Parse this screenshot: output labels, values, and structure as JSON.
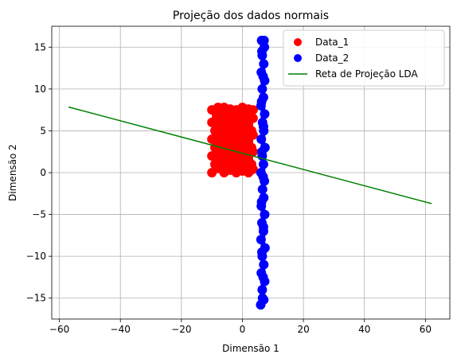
{
  "chart_data": {
    "type": "scatter",
    "title": "Projeção dos dados normais",
    "xlabel": "Dimensão 1",
    "ylabel": "Dimensão 2",
    "xlim": [
      -62.5,
      68
    ],
    "ylim": [
      -17.5,
      17.5
    ],
    "xticks": [
      -60,
      -40,
      -20,
      0,
      20,
      40,
      60
    ],
    "yticks": [
      -15,
      -10,
      -5,
      0,
      5,
      10,
      15
    ],
    "xtick_labels": [
      "−60",
      "−40",
      "−20",
      "0",
      "20",
      "40",
      "60"
    ],
    "ytick_labels": [
      "−15",
      "−10",
      "−5",
      "0",
      "5",
      "10",
      "15"
    ],
    "grid": true,
    "legend": "top-right",
    "series": [
      {
        "name": "Data_1",
        "kind": "scatter",
        "color": "#ff0000",
        "region": {
          "x": [
            -10,
            3.5
          ],
          "y": [
            0,
            7.8
          ]
        },
        "points": [
          [
            -10,
            0
          ],
          [
            -10,
            2
          ],
          [
            -10,
            4
          ],
          [
            -10,
            6
          ],
          [
            -10,
            7.5
          ],
          [
            -8,
            0.5
          ],
          [
            -8,
            2.5
          ],
          [
            -8,
            4.5
          ],
          [
            -8,
            6.5
          ],
          [
            -8,
            7.8
          ],
          [
            -6,
            0
          ],
          [
            -6,
            1.5
          ],
          [
            -6,
            3
          ],
          [
            -6,
            5
          ],
          [
            -6,
            7
          ],
          [
            -6,
            7.8
          ],
          [
            -4,
            0.3
          ],
          [
            -4,
            2
          ],
          [
            -4,
            4
          ],
          [
            -4,
            6
          ],
          [
            -4,
            7.6
          ],
          [
            -2,
            0
          ],
          [
            -2,
            1.8
          ],
          [
            -2,
            3.5
          ],
          [
            -2,
            5.5
          ],
          [
            -2,
            7.5
          ],
          [
            0,
            0.2
          ],
          [
            0,
            2.2
          ],
          [
            0,
            4.2
          ],
          [
            0,
            6.2
          ],
          [
            0,
            7.8
          ],
          [
            2,
            0
          ],
          [
            2,
            1.5
          ],
          [
            2,
            3.8
          ],
          [
            2,
            5.8
          ],
          [
            2,
            7.6
          ],
          [
            3.5,
            0.4
          ],
          [
            3.5,
            2.5
          ],
          [
            3.5,
            4.5
          ],
          [
            3.5,
            6.5
          ],
          [
            3.5,
            7.5
          ],
          [
            -9,
            1
          ],
          [
            -9,
            3
          ],
          [
            -9,
            5
          ],
          [
            -7,
            1.5
          ],
          [
            -7,
            3.5
          ],
          [
            -7,
            5.5
          ],
          [
            -5,
            1
          ],
          [
            -5,
            3
          ],
          [
            -5,
            5
          ],
          [
            -3,
            1
          ],
          [
            -3,
            3
          ],
          [
            -3,
            5
          ],
          [
            -1,
            1
          ],
          [
            -1,
            3
          ],
          [
            -1,
            5
          ],
          [
            1,
            1
          ],
          [
            1,
            3
          ],
          [
            1,
            5
          ],
          [
            3,
            1
          ],
          [
            3,
            3
          ],
          [
            3,
            5
          ]
        ]
      },
      {
        "name": "Data_2",
        "kind": "scatter",
        "color": "#0000ff",
        "region": {
          "x": [
            6,
            7.5
          ],
          "y": [
            -15.8,
            15.8
          ]
        },
        "points": [
          [
            6,
            -15.8
          ],
          [
            7,
            -15.2
          ],
          [
            6.5,
            -14
          ],
          [
            7.3,
            -13
          ],
          [
            6.2,
            -12
          ],
          [
            7,
            -11
          ],
          [
            6.5,
            -10
          ],
          [
            7.4,
            -9
          ],
          [
            6.1,
            -8
          ],
          [
            6.9,
            -7
          ],
          [
            6.4,
            -6
          ],
          [
            7.3,
            -5
          ],
          [
            6.2,
            -4
          ],
          [
            7,
            -3
          ],
          [
            6.6,
            -2
          ],
          [
            7.2,
            -1
          ],
          [
            6.1,
            0
          ],
          [
            6.9,
            1
          ],
          [
            6.5,
            2
          ],
          [
            7.4,
            3
          ],
          [
            6.2,
            4
          ],
          [
            7,
            5
          ],
          [
            6.6,
            6
          ],
          [
            7.3,
            7
          ],
          [
            6.1,
            8
          ],
          [
            6.9,
            9
          ],
          [
            6.5,
            10
          ],
          [
            7.3,
            11
          ],
          [
            6.2,
            12
          ],
          [
            7,
            13
          ],
          [
            6.5,
            14
          ],
          [
            7.2,
            15
          ],
          [
            6.3,
            15.8
          ],
          [
            7.1,
            15.8
          ],
          [
            6.6,
            -15
          ],
          [
            6.8,
            -12.5
          ],
          [
            6.4,
            -9.5
          ],
          [
            6.9,
            -6.5
          ],
          [
            6.3,
            -3.5
          ],
          [
            6.8,
            -0.5
          ],
          [
            6.4,
            2.5
          ],
          [
            6.9,
            5.5
          ],
          [
            6.3,
            8.5
          ],
          [
            6.8,
            11.5
          ],
          [
            6.4,
            14.5
          ]
        ]
      },
      {
        "name": "Reta de Projeção LDA",
        "kind": "line",
        "color": "#008000",
        "x": [
          -57,
          62
        ],
        "y": [
          7.85,
          -3.7
        ]
      }
    ]
  }
}
